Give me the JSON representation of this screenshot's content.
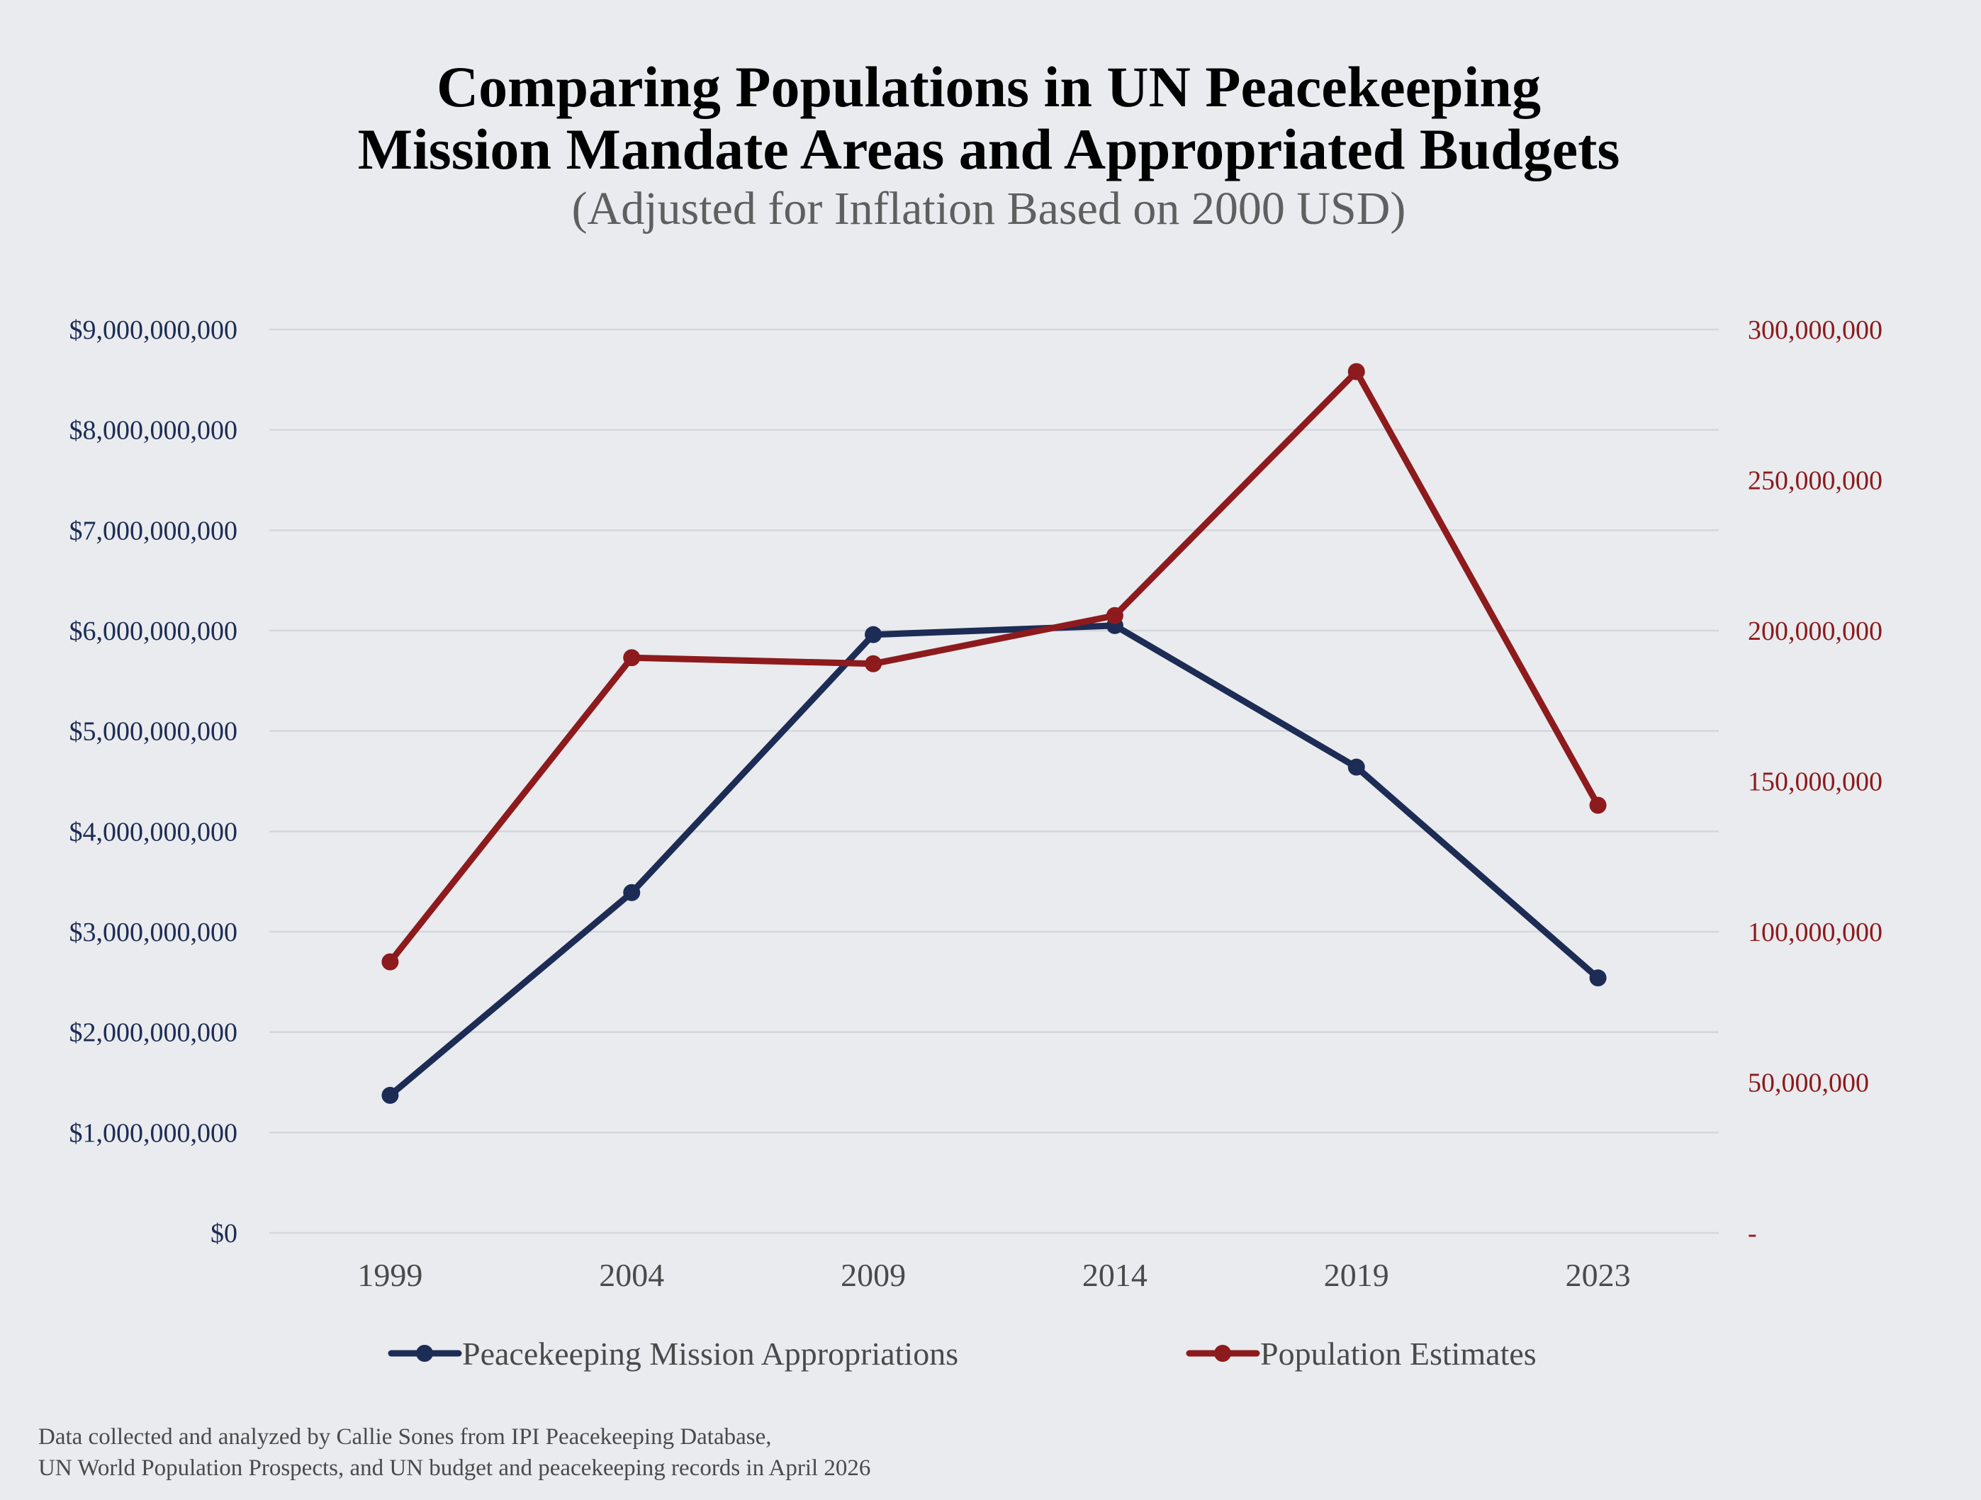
{
  "chart_data": {
    "type": "line",
    "title_lines": [
      "Comparing Populations in UN Peacekeeping",
      "Mission Mandate Areas and Appropriated Budgets"
    ],
    "subtitle": "(Adjusted for Inflation Based on 2000 USD)",
    "categories": [
      "1999",
      "2004",
      "2009",
      "2014",
      "2019",
      "2023"
    ],
    "left_axis": {
      "range": [
        0,
        9000000000
      ],
      "tick_labels": [
        "$0",
        "$1,000,000,000",
        "$2,000,000,000",
        "$3,000,000,000",
        "$4,000,000,000",
        "$5,000,000,000",
        "$6,000,000,000",
        "$7,000,000,000",
        "$8,000,000,000",
        "$9,000,000,000"
      ],
      "color": "#1d2c55"
    },
    "right_axis": {
      "range": [
        0,
        300000000
      ],
      "tick_labels": [
        "-",
        "50,000,000",
        "100,000,000",
        "150,000,000",
        "200,000,000",
        "250,000,000",
        "300,000,000"
      ],
      "color": "#8d1a1c"
    },
    "series": [
      {
        "name": "Peacekeeping Mission Appropriations",
        "axis": "left",
        "color": "#1d2c55",
        "values": [
          1370000000,
          3390000000,
          5960000000,
          6050000000,
          4640000000,
          2540000000
        ]
      },
      {
        "name": "Population Estimates",
        "axis": "right",
        "color": "#8d1a1c",
        "values": [
          90000000,
          191000000,
          189000000,
          205000000,
          286000000,
          142000000
        ]
      }
    ],
    "grid": true,
    "legend_position": "bottom",
    "footnote_lines": [
      "Data collected and analyzed by Callie Sones from IPI Peacekeeping Database,",
      "UN World Population Prospects, and UN budget and peacekeeping records in April 2026"
    ]
  }
}
